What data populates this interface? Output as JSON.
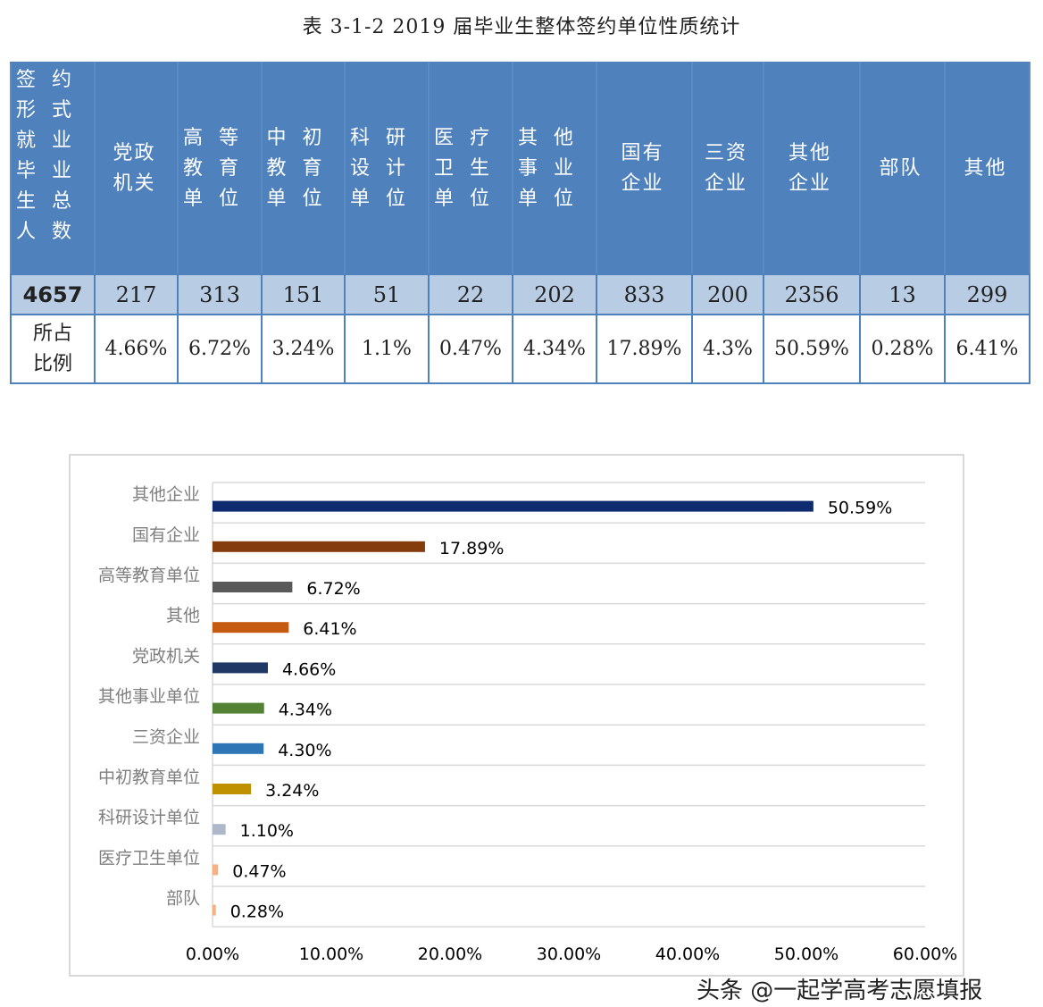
{
  "title": "表 3-1-2    2019 届毕业生整体签约单位性质统计",
  "table": {
    "headers": [
      "签约形式就业毕业生总人数",
      "党政机关",
      "高等教育单位",
      "中初教育单位",
      "科研设计单位",
      "医疗卫生单位",
      "其他事业单位",
      "国有企业",
      "三资企业",
      "其他企业",
      "部队",
      "其他"
    ],
    "counts": [
      "4657",
      "217",
      "313",
      "151",
      "51",
      "22",
      "202",
      "833",
      "200",
      "2356",
      "13",
      "299"
    ],
    "ratio_label": "所占比例",
    "ratios": [
      "4.66%",
      "6.72%",
      "3.24%",
      "1.1%",
      "0.47%",
      "4.34%",
      "17.89%",
      "4.3%",
      "50.59%",
      "0.28%",
      "6.41%"
    ]
  },
  "chart_data": {
    "type": "bar",
    "orientation": "horizontal",
    "categories": [
      "其他企业",
      "国有企业",
      "高等教育单位",
      "其他",
      "党政机关",
      "其他事业单位",
      "三资企业",
      "中初教育单位",
      "科研设计单位",
      "医疗卫生单位",
      "部队"
    ],
    "values": [
      50.59,
      17.89,
      6.72,
      6.41,
      4.66,
      4.34,
      4.3,
      3.24,
      1.1,
      0.47,
      0.28
    ],
    "labels": [
      "50.59%",
      "17.89%",
      "6.72%",
      "6.41%",
      "4.66%",
      "4.34%",
      "4.30%",
      "3.24%",
      "1.10%",
      "0.47%",
      "0.28%"
    ],
    "colors": [
      "#0d2b6e",
      "#843c0c",
      "#595959",
      "#c55a11",
      "#1f3864",
      "#548235",
      "#2e75b6",
      "#bf9000",
      "#adb9ca",
      "#f4b183",
      "#f4b183"
    ],
    "xlim": [
      0,
      60
    ],
    "xticks": [
      "0.00%",
      "10.00%",
      "20.00%",
      "30.00%",
      "40.00%",
      "50.00%",
      "60.00%"
    ],
    "grid": true
  },
  "watermark": "头条 @一起学高考志愿填报"
}
